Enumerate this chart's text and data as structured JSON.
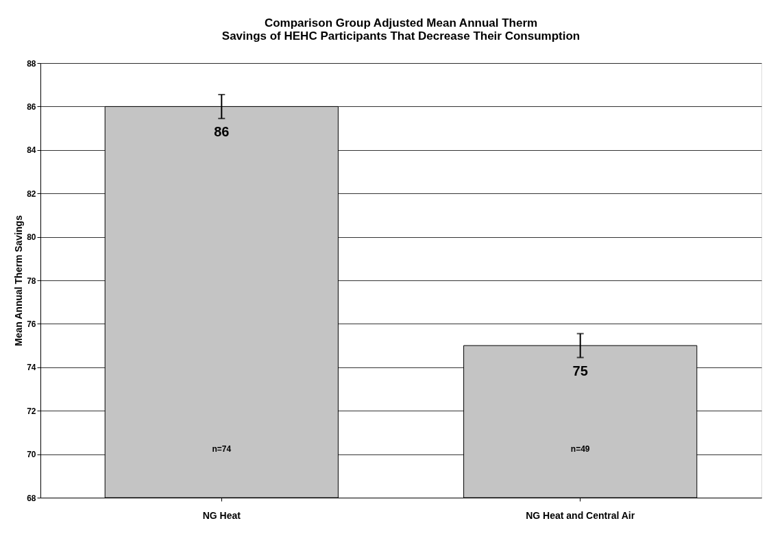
{
  "chart_data": {
    "type": "bar",
    "title": [
      "Comparison Group Adjusted Mean Annual Therm",
      "Savings of HEHC Participants That Decrease Their Consumption"
    ],
    "ylabel": "Mean Annual Therm Savings",
    "categories": [
      "NG Heat",
      "NG Heat and Central Air"
    ],
    "values": [
      86,
      75
    ],
    "errors": [
      0.55,
      0.55
    ],
    "color": "#c4c4c4",
    "data_labels": true,
    "ylim": [
      68,
      88
    ],
    "yticks": [
      68,
      70,
      72,
      74,
      76,
      78,
      80,
      82,
      84,
      86,
      88
    ],
    "grid": "y",
    "annotations": [
      "n=74",
      "n=49"
    ]
  }
}
